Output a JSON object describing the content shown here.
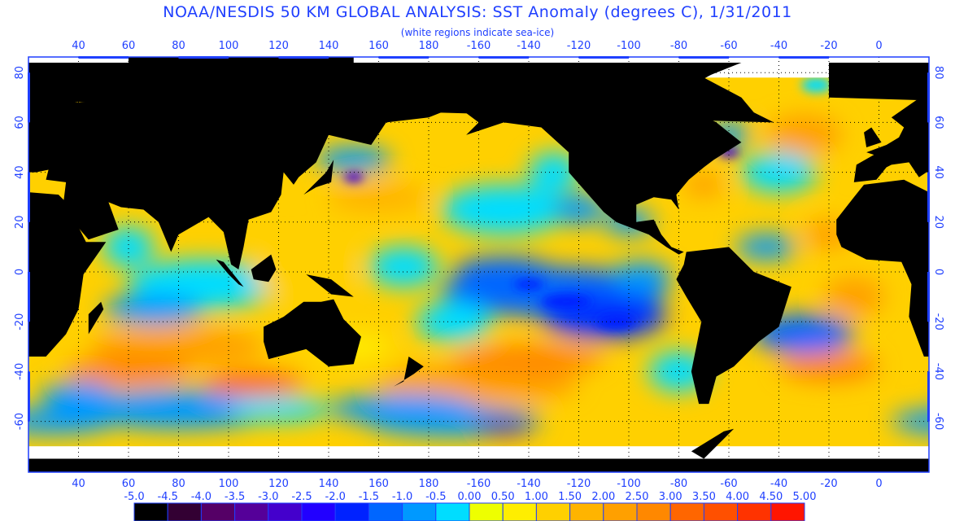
{
  "title": "NOAA/NESDIS 50 KM GLOBAL ANALYSIS: SST Anomaly (degrees C), 1/31/2011",
  "subtitle": "(white regions indicate sea-ice)",
  "map": {
    "projection": "equirectangular, centered on 200°E",
    "lon_ticks": [
      "40",
      "60",
      "80",
      "100",
      "120",
      "140",
      "160",
      "180",
      "-160",
      "-140",
      "-120",
      "-100",
      "-80",
      "-60",
      "-40",
      "-20",
      "0"
    ],
    "lat_ticks": [
      "80",
      "60",
      "40",
      "20",
      "0",
      "-20",
      "-40",
      "-60"
    ],
    "land_color": "#000000",
    "sea_ice_color": "#ffffff",
    "gridlines": "dotted"
  },
  "colorbar": {
    "labels": [
      "-5.0",
      "-4.5",
      "-4.0",
      "-3.5",
      "-3.0",
      "-2.5",
      "-2.0",
      "-1.5",
      "-1.0",
      "-0.5",
      "0.00",
      "0.50",
      "1.00",
      "1.50",
      "2.00",
      "2.50",
      "3.00",
      "3.50",
      "4.00",
      "4.50",
      "5.00"
    ],
    "colors": [
      "#000000",
      "#330033",
      "#550066",
      "#550099",
      "#4400cc",
      "#2200ff",
      "#0022ff",
      "#0066ff",
      "#0099ff",
      "#00ddff",
      "#eeff00",
      "#ffee00",
      "#ffd000",
      "#ffb400",
      "#ffa000",
      "#ff8800",
      "#ff6600",
      "#ff5000",
      "#ff3300",
      "#ff1500"
    ]
  }
}
